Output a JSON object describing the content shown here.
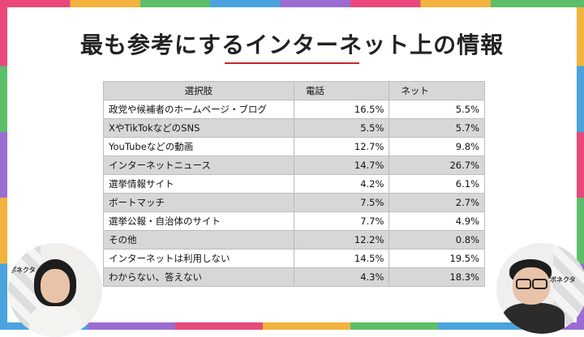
{
  "title": "最も参考にするインターネット上の情報",
  "table": {
    "headers": [
      "選択肢",
      "電話",
      "ネット"
    ],
    "rows": [
      {
        "label": "政党や候補者のホームページ・ブログ",
        "phone": "16.5%",
        "net": "5.5%"
      },
      {
        "label": "XやTikTokなどのSNS",
        "phone": "5.5%",
        "net": "5.7%"
      },
      {
        "label": "YouTubeなどの動画",
        "phone": "12.7%",
        "net": "9.8%"
      },
      {
        "label": "インターネットニュース",
        "phone": "14.7%",
        "net": "26.7%"
      },
      {
        "label": "選挙情報サイト",
        "phone": "4.2%",
        "net": "6.1%"
      },
      {
        "label": "ボートマッチ",
        "phone": "7.5%",
        "net": "2.7%"
      },
      {
        "label": "選挙公報・自治体のサイト",
        "phone": "7.7%",
        "net": "4.9%"
      },
      {
        "label": "その他",
        "phone": "12.2%",
        "net": "0.8%"
      },
      {
        "label": "インターネットは利用しない",
        "phone": "14.5%",
        "net": "19.5%"
      },
      {
        "label": "わからない、答えない",
        "phone": "4.3%",
        "net": "18.3%"
      }
    ]
  },
  "cams": {
    "left_backdrop": "ボネクタ",
    "right_backdrop": "ボネクタ"
  },
  "colors": {
    "title_underline": "#c62828",
    "header_fill": "#d7d7d7",
    "alt_row_fill": "#d7d7d7"
  }
}
